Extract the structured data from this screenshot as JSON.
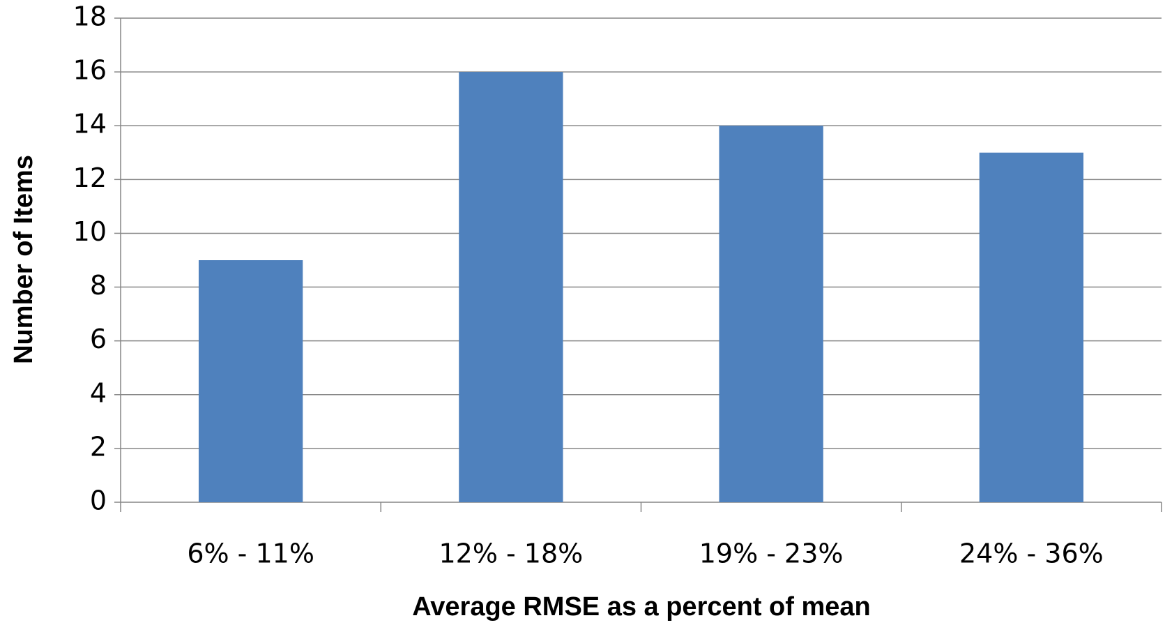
{
  "chart_data": {
    "type": "bar",
    "x_label": "Average RMSE as a percent of mean",
    "y_label": "Number  of Items",
    "categories": [
      "6% - 11%",
      "12% - 18%",
      "19% - 23%",
      "24% - 36%"
    ],
    "values": [
      9,
      16,
      14,
      13
    ],
    "color": "#4f81bd",
    "ylim": [
      0,
      18
    ],
    "yticks": [
      0,
      2,
      4,
      6,
      8,
      10,
      12,
      14,
      16,
      18
    ],
    "grid": true
  }
}
